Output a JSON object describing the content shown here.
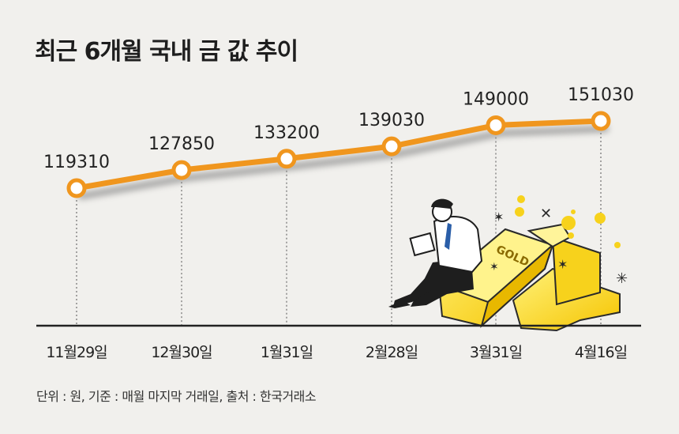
{
  "chart_data": {
    "type": "line",
    "title": "최근 6개월 국내 금 값 추이",
    "categories": [
      "11월29일",
      "12월30일",
      "1월31일",
      "2월28일",
      "3월31일",
      "4월16일"
    ],
    "values": [
      119310,
      127850,
      133200,
      139030,
      149000,
      151030
    ],
    "value_labels": [
      "119310",
      "127850",
      "133200",
      "139030",
      "149000",
      "151030"
    ],
    "footnote": "단위 : 원, 기준 : 매월 마지막 거래일, 출처 : 한국거래소",
    "grid": false,
    "line_color": "#f0961e",
    "marker_fill": "#ffffff",
    "background": "#f1f0ed"
  }
}
